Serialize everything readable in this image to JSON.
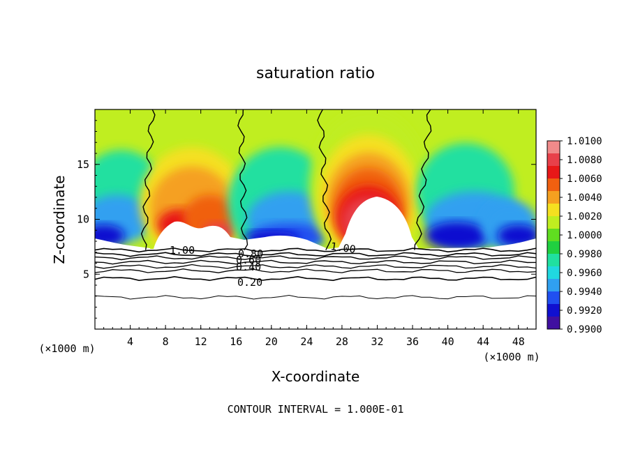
{
  "chart_data": {
    "type": "heatmap",
    "title": "saturation ratio",
    "xlabel": "X-coordinate",
    "ylabel": "Z-coordinate",
    "x_unit": "(×1000 m)",
    "y_unit": "(×1000 m)",
    "xlim": [
      0,
      50
    ],
    "ylim": [
      0,
      20
    ],
    "x_ticks": [
      4,
      8,
      12,
      16,
      20,
      24,
      28,
      32,
      36,
      40,
      44,
      48
    ],
    "y_ticks": [
      5,
      10,
      15
    ],
    "colorbar": {
      "min": 0.99,
      "max": 1.01,
      "tick_labels": [
        "1.0100",
        "1.0080",
        "1.0060",
        "1.0040",
        "1.0020",
        "1.0000",
        "0.9980",
        "0.9960",
        "0.9940",
        "0.9920",
        "0.9900"
      ],
      "colors": [
        "#f08a8a",
        "#e8404a",
        "#e81818",
        "#f06010",
        "#f5a020",
        "#f5e020",
        "#c0ee20",
        "#60dd20",
        "#20d040",
        "#20e0a0",
        "#20d8e0",
        "#30a0f0",
        "#2050f0",
        "#1010d0",
        "#4010a0"
      ]
    },
    "contour_labels": [
      "1.00",
      "0.80",
      "0.60",
      "0.40",
      "0.20",
      "1.00"
    ],
    "footnote": "CONTOUR INTERVAL = 1.000E-01"
  }
}
